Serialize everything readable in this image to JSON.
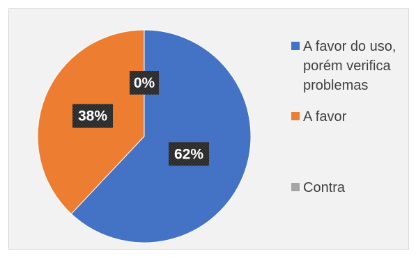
{
  "chart_data": {
    "type": "pie",
    "title": "",
    "categories": [
      "A favor do uso, porém verifica problemas",
      "A favor",
      "Contra"
    ],
    "values": [
      62,
      38,
      0
    ],
    "data_labels": [
      "62%",
      "38%",
      "0%"
    ],
    "colors": [
      "#4472c4",
      "#ed7d31",
      "#a5a5a5"
    ],
    "legend": {
      "position": "right",
      "items": [
        {
          "label_lines": [
            "A favor do uso,",
            "porém verifica",
            "problemas"
          ],
          "color": "#4472c4"
        },
        {
          "label_lines": [
            "A favor"
          ],
          "color": "#ed7d31"
        },
        {
          "label_lines": [
            "Contra"
          ],
          "color": "#a5a5a5"
        }
      ]
    }
  }
}
